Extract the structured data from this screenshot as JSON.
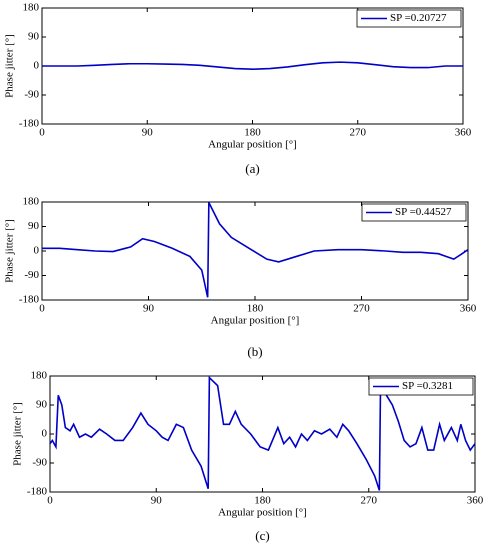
{
  "chart_data": [
    {
      "type": "line",
      "caption": "(a)",
      "x_label": "Angular position [°]",
      "y_label": "Phase jitter [°]",
      "xlim": [
        0,
        360
      ],
      "ylim": [
        -180,
        180
      ],
      "xticks": [
        0,
        90,
        180,
        270,
        360
      ],
      "yticks": [
        -180,
        -90,
        0,
        90,
        180
      ],
      "legend": "upper right",
      "series": [
        {
          "name": "SP =0.20727",
          "color": "#0000c8",
          "x": [
            0,
            15,
            30,
            45,
            60,
            75,
            90,
            105,
            120,
            135,
            150,
            165,
            180,
            195,
            210,
            225,
            240,
            255,
            270,
            285,
            300,
            315,
            330,
            345,
            360
          ],
          "values": [
            0,
            0,
            0,
            2,
            5,
            7,
            7,
            6,
            5,
            2,
            -3,
            -8,
            -10,
            -8,
            -3,
            4,
            10,
            12,
            10,
            4,
            -2,
            -5,
            -5,
            0,
            0
          ]
        }
      ]
    },
    {
      "type": "line",
      "caption": "(b)",
      "x_label": "Angular position [°]",
      "y_label": "Phase jitter [°]",
      "xlim": [
        0,
        360
      ],
      "ylim": [
        -180,
        180
      ],
      "xticks": [
        0,
        90,
        180,
        270,
        360
      ],
      "yticks": [
        -180,
        -90,
        0,
        90,
        180
      ],
      "legend": "upper right",
      "series": [
        {
          "name": "SP =0.44527",
          "color": "#0000c8",
          "x": [
            0,
            15,
            30,
            45,
            60,
            75,
            85,
            95,
            110,
            125,
            135,
            140,
            141,
            150,
            160,
            175,
            190,
            200,
            215,
            230,
            250,
            270,
            290,
            305,
            320,
            335,
            348,
            355,
            360
          ],
          "values": [
            10,
            10,
            5,
            0,
            -2,
            15,
            45,
            35,
            10,
            -20,
            -70,
            -170,
            178,
            100,
            50,
            10,
            -30,
            -40,
            -20,
            0,
            5,
            5,
            0,
            -5,
            -5,
            -10,
            -30,
            -10,
            5
          ]
        }
      ]
    },
    {
      "type": "line",
      "caption": "(c)",
      "x_label": "Angular position [°]",
      "y_label": "Phase jitter [°]",
      "xlim": [
        0,
        360
      ],
      "ylim": [
        -180,
        180
      ],
      "xticks": [
        0,
        90,
        180,
        270,
        360
      ],
      "yticks": [
        -180,
        -90,
        0,
        90,
        180
      ],
      "legend": "upper right",
      "series": [
        {
          "name": "SP =0.3281",
          "color": "#0000c8",
          "x": [
            0,
            2,
            5,
            7,
            10,
            13,
            17,
            20,
            25,
            30,
            35,
            42,
            48,
            55,
            62,
            70,
            77,
            83,
            90,
            95,
            100,
            107,
            113,
            120,
            128,
            134,
            135,
            142,
            147,
            152,
            157,
            162,
            170,
            178,
            185,
            193,
            198,
            203,
            208,
            213,
            218,
            224,
            230,
            237,
            243,
            248,
            253,
            260,
            268,
            275,
            279,
            280,
            285,
            290,
            295,
            300,
            305,
            310,
            315,
            320,
            325,
            330,
            334,
            340,
            345,
            348,
            352,
            356,
            360
          ],
          "values": [
            -30,
            -20,
            -40,
            120,
            90,
            20,
            10,
            30,
            -10,
            0,
            -10,
            15,
            0,
            -20,
            -20,
            20,
            65,
            30,
            10,
            -10,
            -20,
            30,
            20,
            -50,
            -100,
            -170,
            175,
            150,
            30,
            30,
            70,
            30,
            0,
            -40,
            -50,
            20,
            -30,
            -10,
            -40,
            0,
            -20,
            10,
            0,
            15,
            -10,
            30,
            10,
            -30,
            -80,
            -130,
            -175,
            160,
            120,
            90,
            40,
            -20,
            -40,
            -30,
            20,
            -50,
            -50,
            30,
            -20,
            20,
            -20,
            30,
            -20,
            -50,
            -30
          ]
        }
      ]
    }
  ]
}
